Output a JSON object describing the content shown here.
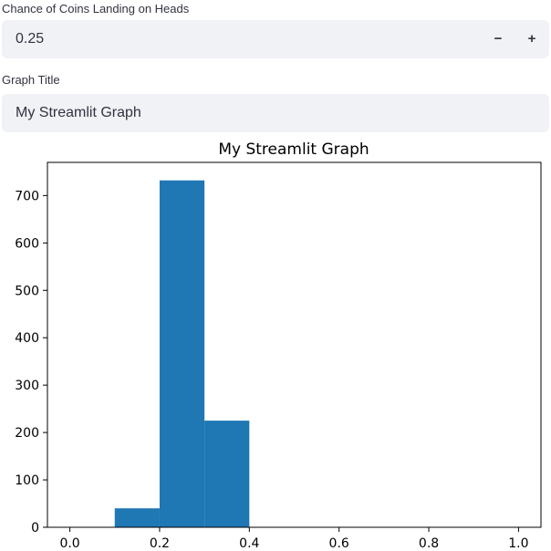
{
  "heads_chance": {
    "label": "Chance of Coins Landing on Heads",
    "value": "0.25",
    "decrement_label": "−",
    "increment_label": "+"
  },
  "graph_title": {
    "label": "Graph Title",
    "value": "My Streamlit Graph"
  },
  "chart_data": {
    "type": "bar",
    "title": "My Streamlit Graph",
    "xlabel": "",
    "ylabel": "",
    "xlim": [
      -0.05,
      1.05
    ],
    "ylim": [
      0,
      770
    ],
    "bin_edges": [
      0.1,
      0.2,
      0.3,
      0.4
    ],
    "values": [
      40,
      732,
      225
    ],
    "x_ticks": [
      "0.0",
      "0.2",
      "0.4",
      "0.6",
      "0.8",
      "1.0"
    ],
    "y_ticks": [
      "0",
      "100",
      "200",
      "300",
      "400",
      "500",
      "600",
      "700"
    ],
    "color": "#1f77b4",
    "grid": false,
    "legend": "none"
  }
}
